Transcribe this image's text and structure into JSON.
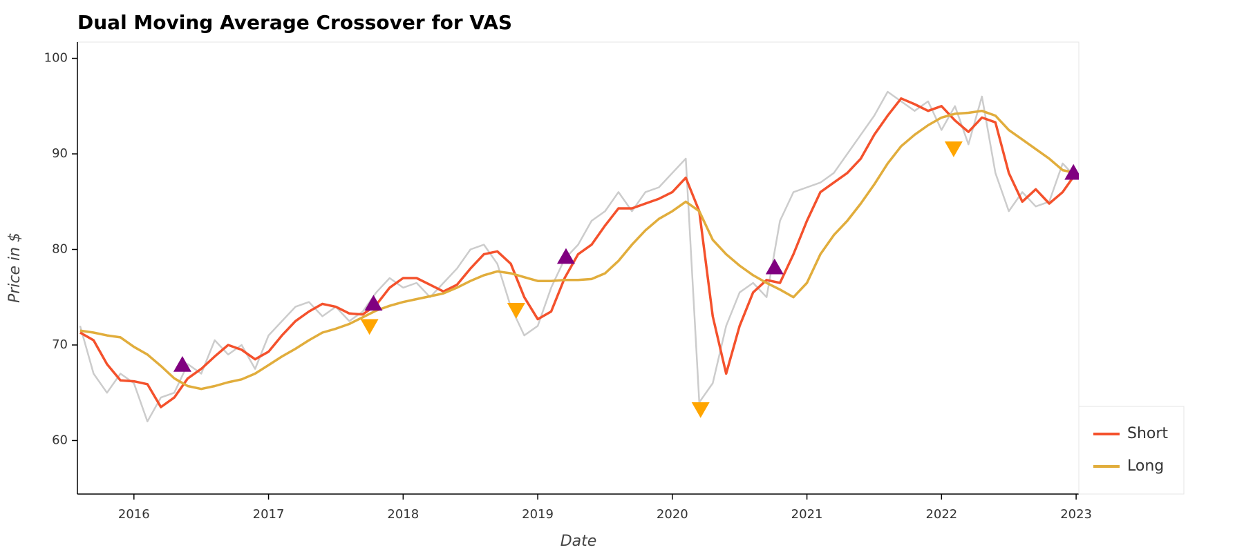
{
  "chart_data": {
    "type": "line",
    "title": "Dual Moving Average Crossover for VAS",
    "x_label": "Date",
    "y_label": "Price in $",
    "xlim": [
      2015.58,
      2023.02
    ],
    "ylim": [
      54.4,
      101.7
    ],
    "xticks": [
      2016,
      2017,
      2018,
      2019,
      2020,
      2021,
      2022,
      2023
    ],
    "yticks": [
      60,
      70,
      80,
      90,
      100
    ],
    "x": [
      2015.6,
      2015.7,
      2015.8,
      2015.9,
      2016.0,
      2016.1,
      2016.2,
      2016.3,
      2016.4,
      2016.5,
      2016.6,
      2016.7,
      2016.8,
      2016.9,
      2017.0,
      2017.1,
      2017.2,
      2017.3,
      2017.4,
      2017.5,
      2017.6,
      2017.7,
      2017.8,
      2017.9,
      2018.0,
      2018.1,
      2018.2,
      2018.3,
      2018.4,
      2018.5,
      2018.6,
      2018.7,
      2018.8,
      2018.9,
      2019.0,
      2019.1,
      2019.2,
      2019.3,
      2019.4,
      2019.5,
      2019.6,
      2019.7,
      2019.8,
      2019.9,
      2020.0,
      2020.1,
      2020.2,
      2020.3,
      2020.4,
      2020.5,
      2020.6,
      2020.7,
      2020.8,
      2020.9,
      2021.0,
      2021.1,
      2021.2,
      2021.3,
      2021.4,
      2021.5,
      2021.6,
      2021.7,
      2021.8,
      2021.9,
      2022.0,
      2022.1,
      2022.2,
      2022.3,
      2022.4,
      2022.5,
      2022.6,
      2022.7,
      2022.8,
      2022.9,
      2023.0
    ],
    "series": [
      {
        "color": "#cccccc",
        "width": 2.5,
        "values": [
          72,
          67,
          65,
          67,
          66,
          62,
          64.5,
          65,
          68,
          67,
          70.5,
          69,
          70,
          67.5,
          71,
          72.5,
          74,
          74.5,
          73,
          74,
          72.5,
          73.5,
          75.5,
          77,
          76,
          76.5,
          75,
          76.5,
          78,
          80,
          80.5,
          78.5,
          74,
          71,
          72,
          76,
          79,
          80.5,
          83,
          84,
          86,
          84,
          86,
          86.5,
          88,
          89.5,
          64,
          66,
          72,
          75.5,
          76.5,
          75,
          83,
          86,
          86.5,
          87,
          88,
          90,
          92,
          94,
          96.5,
          95.5,
          94.5,
          95.5,
          92.5,
          95,
          91,
          96,
          88,
          84,
          86,
          84.5,
          85,
          89,
          87.5
        ]
      },
      {
        "name": "Short",
        "color": "#f4512c",
        "width": 3.5,
        "values": [
          71.3,
          70.5,
          68,
          66.3,
          66.2,
          65.9,
          63.5,
          64.5,
          66.5,
          67.5,
          68.8,
          70,
          69.5,
          68.5,
          69.3,
          71,
          72.5,
          73.5,
          74.3,
          74,
          73.3,
          73.2,
          74.2,
          76,
          77,
          77,
          76.3,
          75.6,
          76.3,
          78,
          79.5,
          79.8,
          78.5,
          75,
          72.7,
          73.5,
          77,
          79.5,
          80.5,
          82.5,
          84.3,
          84.3,
          84.8,
          85.3,
          86,
          87.5,
          84,
          73,
          67,
          72,
          75.5,
          76.8,
          76.5,
          79.5,
          83,
          86,
          87,
          88,
          89.5,
          92,
          94,
          95.8,
          95.2,
          94.5,
          95,
          93.5,
          92.3,
          93.8,
          93.3,
          88,
          85,
          86.3,
          84.8,
          86,
          88
        ]
      },
      {
        "name": "Long",
        "color": "#e1ad3c",
        "width": 3.5,
        "values": [
          71.5,
          71.3,
          71,
          70.8,
          69.8,
          69,
          67.8,
          66.5,
          65.7,
          65.4,
          65.7,
          66.1,
          66.4,
          67,
          67.9,
          68.8,
          69.6,
          70.5,
          71.3,
          71.7,
          72.2,
          72.9,
          73.6,
          74.1,
          74.5,
          74.8,
          75.1,
          75.4,
          76,
          76.7,
          77.3,
          77.7,
          77.5,
          77.1,
          76.7,
          76.7,
          76.8,
          76.8,
          76.9,
          77.5,
          78.8,
          80.5,
          82,
          83.2,
          84,
          85,
          84,
          81,
          79.5,
          78.3,
          77.3,
          76.5,
          75.8,
          75,
          76.5,
          79.5,
          81.5,
          83,
          84.8,
          86.8,
          89,
          90.8,
          92,
          93,
          93.8,
          94.2,
          94.3,
          94.5,
          94,
          92.5,
          91.5,
          90.5,
          89.5,
          88.3,
          88
        ]
      }
    ],
    "markers": [
      {
        "marker": "triangle-up",
        "color": "#800080",
        "x": [
          2016.36,
          2017.78,
          2019.21,
          2020.76,
          2022.98
        ],
        "values": [
          67.9,
          74.3,
          79.2,
          78.1,
          88
        ]
      },
      {
        "marker": "triangle-down",
        "color": "#ffa500",
        "x": [
          2017.75,
          2018.84,
          2020.21,
          2022.09
        ],
        "values": [
          72,
          73.7,
          63.3,
          90.6
        ]
      }
    ]
  }
}
